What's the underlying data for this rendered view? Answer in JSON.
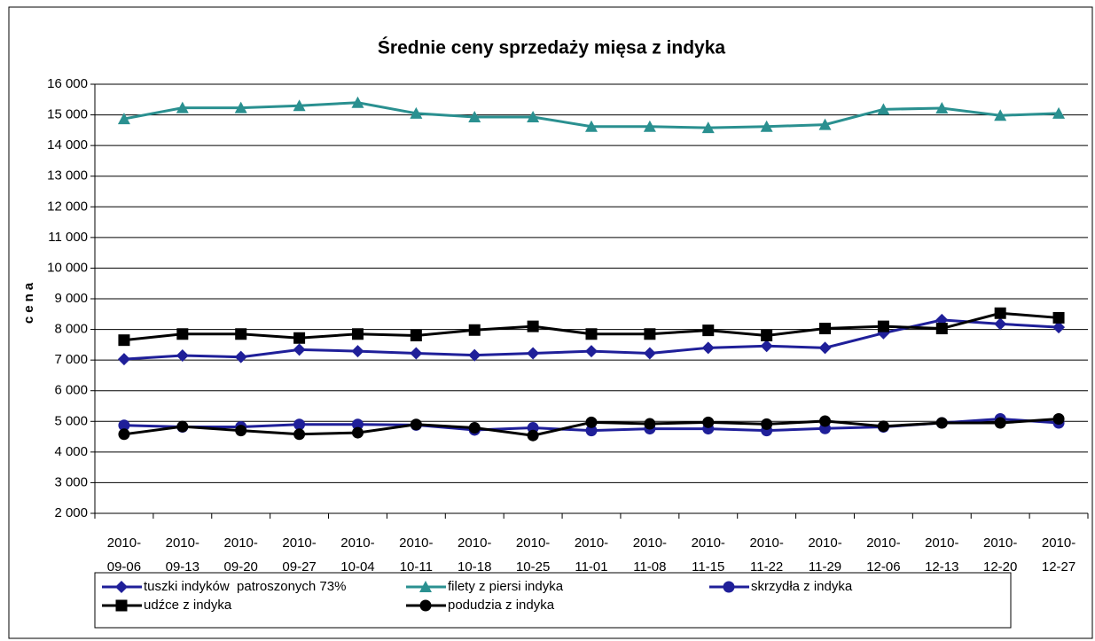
{
  "chart_data": {
    "type": "line",
    "title": "Średnie ceny sprzedaży mięsa z indyka",
    "y_label": "cena",
    "categories": [
      "2010-09-06",
      "2010-09-13",
      "2010-09-20",
      "2010-09-27",
      "2010-10-04",
      "2010-10-11",
      "2010-10-18",
      "2010-10-25",
      "2010-11-01",
      "2010-11-08",
      "2010-11-15",
      "2010-11-22",
      "2010-11-29",
      "2010-12-06",
      "2010-12-13",
      "2010-12-20",
      "2010-12-27"
    ],
    "series": [
      {
        "name": "tuszki indyków  patroszonych 73%",
        "color": "#1f1f99",
        "marker": "diamond",
        "values": [
          7030,
          7150,
          7100,
          7340,
          7290,
          7220,
          7160,
          7220,
          7290,
          7220,
          7400,
          7460,
          7400,
          7880,
          8310,
          8180,
          8070
        ]
      },
      {
        "name": "filety z piersi indyka",
        "color": "#2a9090",
        "marker": "triangle",
        "values": [
          14870,
          15230,
          15230,
          15300,
          15400,
          15050,
          14930,
          14930,
          14620,
          14620,
          14580,
          14620,
          14680,
          15180,
          15220,
          14980,
          15050
        ]
      },
      {
        "name": "skrzydła z indyka",
        "color": "#1f1f99",
        "marker": "circle",
        "values": [
          4870,
          4820,
          4820,
          4900,
          4900,
          4880,
          4720,
          4790,
          4700,
          4760,
          4760,
          4700,
          4770,
          4820,
          4950,
          5080,
          4950
        ]
      },
      {
        "name": "udźce z indyka",
        "color": "#000000",
        "marker": "square",
        "values": [
          7650,
          7850,
          7850,
          7720,
          7850,
          7800,
          7980,
          8100,
          7850,
          7850,
          7970,
          7800,
          8030,
          8100,
          8030,
          8530,
          8380
        ]
      },
      {
        "name": "podudzia z indyka",
        "color": "#000000",
        "marker": "circle",
        "values": [
          4580,
          4830,
          4700,
          4580,
          4630,
          4900,
          4790,
          4540,
          4970,
          4920,
          4970,
          4910,
          5010,
          4840,
          4950,
          4950,
          5080
        ]
      }
    ],
    "ylim": [
      2000,
      16000
    ],
    "yticks": [
      {
        "value": 2000,
        "label": "2 000"
      },
      {
        "value": 3000,
        "label": "3 000"
      },
      {
        "value": 4000,
        "label": "4 000"
      },
      {
        "value": 5000,
        "label": "5 000"
      },
      {
        "value": 6000,
        "label": "6 000"
      },
      {
        "value": 7000,
        "label": "7 000"
      },
      {
        "value": 8000,
        "label": "8 000"
      },
      {
        "value": 9000,
        "label": "9 000"
      },
      {
        "value": 10000,
        "label": "10 000"
      },
      {
        "value": 11000,
        "label": "11 000"
      },
      {
        "value": 12000,
        "label": "12 000"
      },
      {
        "value": 13000,
        "label": "13 000"
      },
      {
        "value": 14000,
        "label": "14 000"
      },
      {
        "value": 15000,
        "label": "15 000"
      },
      {
        "value": 16000,
        "label": "16 000"
      }
    ],
    "grid": true,
    "legend": "bottom"
  }
}
